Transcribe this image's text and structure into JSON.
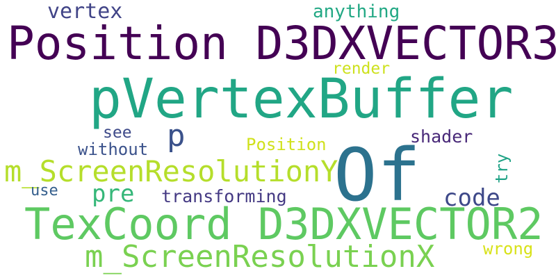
{
  "words": [
    {
      "text": "pVertexBuffer",
      "color": "#21a685"
    },
    {
      "text": "Position D3DXVECTOR3",
      "color": "#440154"
    },
    {
      "text": "TexCoord D3DXVECTOR2",
      "color": "#5ec962"
    },
    {
      "text": "m_ScreenResolutionY",
      "color": "#b5de2b"
    },
    {
      "text": "m_ScreenResolutionX",
      "color": "#7ad151"
    },
    {
      "text": "Of",
      "color": "#2c728e"
    },
    {
      "text": "vertex",
      "color": "#414487"
    },
    {
      "text": "anything",
      "color": "#22a884"
    },
    {
      "text": "render",
      "color": "#cde11d"
    },
    {
      "text": "p",
      "color": "#3b528b"
    },
    {
      "text": "see",
      "color": "#3e4a89"
    },
    {
      "text": "without",
      "color": "#3b528b"
    },
    {
      "text": "Position",
      "color": "#d0e11c"
    },
    {
      "text": "shader",
      "color": "#482878"
    },
    {
      "text": "try",
      "color": "#20a386"
    },
    {
      "text": "use",
      "color": "#355f8d"
    },
    {
      "text": "pre",
      "color": "#35b779"
    },
    {
      "text": "transforming",
      "color": "#443983"
    },
    {
      "text": "code",
      "color": "#3e4989"
    },
    {
      "text": "wrong",
      "color": "#d8e219"
    }
  ]
}
